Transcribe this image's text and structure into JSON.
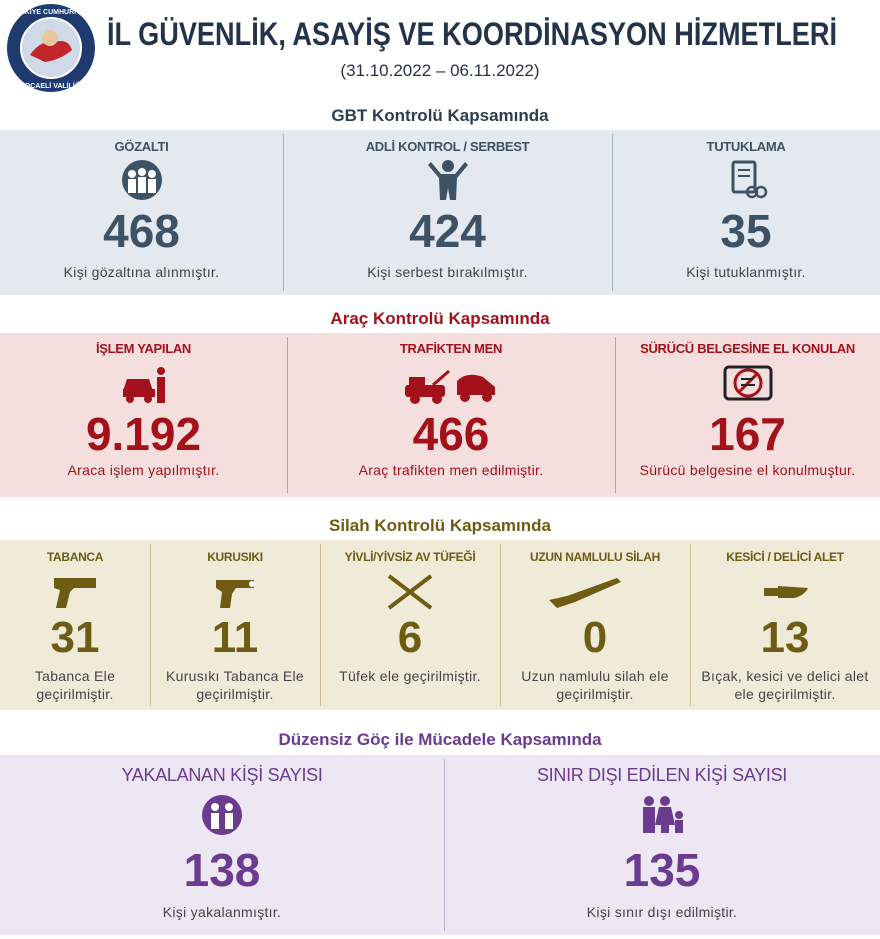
{
  "header": {
    "title": "İL GÜVENLİK, ASAYİŞ VE KOORDİNASYON HİZMETLERİ",
    "date_range": "(31.10.2022 – 06.11.2022)",
    "logo_top": "TÜRKİYE CUMHURİYETİ",
    "logo_bottom": "KOCAELİ VALİLİĞİ"
  },
  "sections": [
    {
      "heading": "GBT Kontrolü Kapsamında",
      "items": [
        {
          "label": "GÖZALTI",
          "value": "468",
          "caption": "Kişi gözaltına alınmıştır."
        },
        {
          "label": "ADLİ KONTROL / SERBEST",
          "value": "424",
          "caption": "Kişi serbest bırakılmıştır."
        },
        {
          "label": "TUTUKLAMA",
          "value": "35",
          "caption": "Kişi tutuklanmıştır."
        }
      ]
    },
    {
      "heading": "Araç Kontrolü Kapsamında",
      "items": [
        {
          "label": "İŞLEM YAPILAN",
          "value": "9.192",
          "caption": "Araca işlem yapılmıştır."
        },
        {
          "label": "TRAFİKTEN MEN",
          "value": "466",
          "caption": "Araç trafikten men edilmiştir."
        },
        {
          "label": "SÜRÜCÜ BELGESİNE EL KONULAN",
          "value": "167",
          "caption": "Sürücü belgesine el konulmuştur."
        }
      ]
    },
    {
      "heading": "Silah Kontrolü Kapsamında",
      "items": [
        {
          "label": "TABANCA",
          "value": "31",
          "caption": "Tabanca Ele geçirilmiştir."
        },
        {
          "label": "KURUSIKI",
          "value": "11",
          "caption": "Kurusıkı Tabanca Ele geçirilmiştir."
        },
        {
          "label": "YİVLİ/YİVSİZ AV TÜFEĞİ",
          "value": "6",
          "caption": "Tüfek ele geçirilmiştir."
        },
        {
          "label": "UZUN NAMLULU SİLAH",
          "value": "0",
          "caption": "Uzun namlulu silah ele geçirilmiştir."
        },
        {
          "label": "KESİCİ / DELİCİ ALET",
          "value": "13",
          "caption": "Bıçak, kesici ve delici alet ele geçirilmiştir."
        }
      ]
    },
    {
      "heading": "Düzensiz Göç ile Mücadele Kapsamında",
      "items": [
        {
          "label": "YAKALANAN KİŞİ SAYISI",
          "value": "138",
          "caption": "Kişi yakalanmıştır."
        },
        {
          "label": "SINIR DIŞI EDİLEN KİŞİ SAYISI",
          "value": "135",
          "caption": "Kişi sınır dışı edilmiştir."
        }
      ]
    }
  ]
}
